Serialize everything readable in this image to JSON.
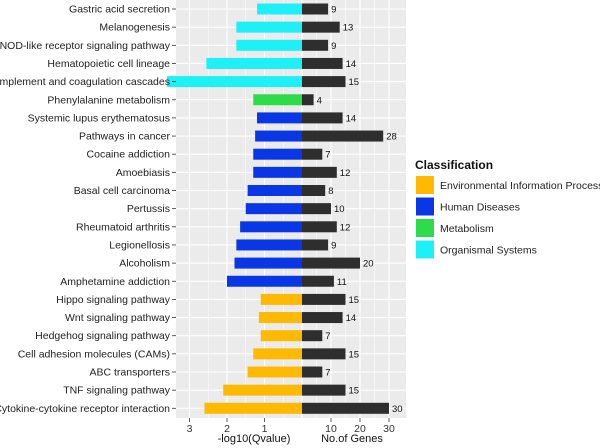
{
  "chart_data": {
    "type": "bar",
    "categories": [
      "Gastric acid secretion",
      "Melanogenesis",
      "NOD-like receptor signaling pathway",
      "Hematopoietic cell lineage",
      "Complement and coagulation cascades",
      "Phenylalanine metabolism",
      "Systemic lupus erythematosus",
      "Pathways in cancer",
      "Cocaine addiction",
      "Amoebiasis",
      "Basal cell carcinoma",
      "Pertussis",
      "Rheumatoid arthritis",
      "Legionellosis",
      "Alcoholism",
      "Amphetamine addiction",
      "Hippo signaling pathway",
      "Wnt signaling pathway",
      "Hedgehog signaling pathway",
      "Cell adhesion molecules (CAMs)",
      "ABC transporters",
      "TNF signaling pathway",
      "Cytokine-cytokine receptor interaction"
    ],
    "classification": [
      "Organismal Systems",
      "Organismal Systems",
      "Organismal Systems",
      "Organismal Systems",
      "Organismal Systems",
      "Metabolism",
      "Human Diseases",
      "Human Diseases",
      "Human Diseases",
      "Human Diseases",
      "Human Diseases",
      "Human Diseases",
      "Human Diseases",
      "Human Diseases",
      "Human Diseases",
      "Human Diseases",
      "Environmental Information Processing",
      "Environmental Information Processing",
      "Environmental Information Processing",
      "Environmental Information Processing",
      "Environmental Information Processing",
      "Environmental Information Processing",
      "Environmental Information Processing"
    ],
    "series": [
      {
        "name": "-log10(Qvalue)",
        "values": [
          1.2,
          1.75,
          1.75,
          2.55,
          3.6,
          1.3,
          1.2,
          1.25,
          1.3,
          1.3,
          1.45,
          1.5,
          1.65,
          1.75,
          1.8,
          2.0,
          1.1,
          1.15,
          1.1,
          1.3,
          1.45,
          2.1,
          2.6
        ]
      },
      {
        "name": "No.of Genes",
        "values": [
          9,
          13,
          9,
          14,
          15,
          4,
          14,
          28,
          7,
          12,
          8,
          10,
          12,
          9,
          20,
          11,
          15,
          14,
          7,
          15,
          7,
          15,
          30
        ]
      }
    ],
    "left_axis": {
      "label": "-log10(Qvalue)",
      "ticks": [
        3,
        2,
        1
      ],
      "tick_labels": [
        "3",
        "2",
        "1"
      ],
      "range": [
        0,
        4.0
      ],
      "scale": "linear",
      "reversed": true
    },
    "right_axis": {
      "label": "No.of Genes",
      "ticks": [
        10,
        20,
        30
      ],
      "tick_labels": [
        "10",
        "20",
        "30"
      ],
      "range": [
        0,
        30
      ],
      "scale": "linear"
    },
    "legend": {
      "title": "Classification",
      "placement": "right",
      "entries": [
        {
          "label": "Environmental Information Processing",
          "color": "#FFB900"
        },
        {
          "label": "Human Diseases",
          "color": "#0A37E6"
        },
        {
          "label": "Metabolism",
          "color": "#2EDB4A"
        },
        {
          "label": "Organismal Systems",
          "color": "#1DF0F6"
        }
      ]
    },
    "count_bar_color": "#2E2E2E",
    "panel_background": "#EBEBEB",
    "grid": true
  }
}
